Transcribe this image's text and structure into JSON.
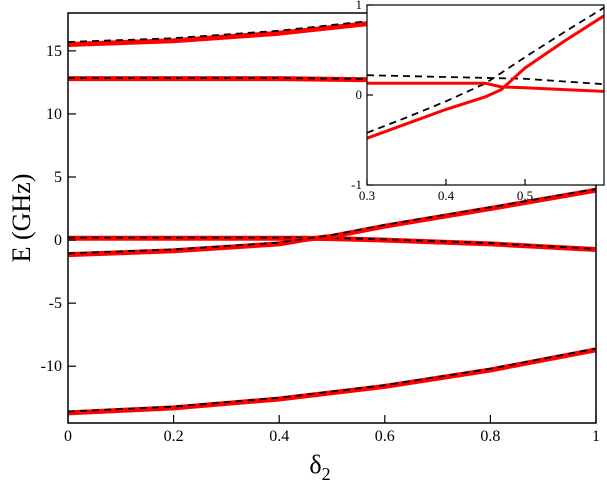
{
  "chart_data": [
    {
      "type": "line",
      "xlabel_main": "δ",
      "xlabel_sub": "2",
      "ylabel": "E (GHz)",
      "xlim": [
        0,
        1
      ],
      "ylim": [
        -14.5,
        18
      ],
      "xticks": [
        0,
        0.2,
        0.4,
        0.6,
        0.8,
        1
      ],
      "xtick_labels": [
        "0",
        "0.2",
        "0.4",
        "0.6",
        "0.8",
        "1"
      ],
      "yticks": [
        -10,
        -5,
        0,
        5,
        10,
        15
      ],
      "ytick_labels": [
        "-10",
        "-5",
        "0",
        "5",
        "10",
        "15"
      ],
      "grid": false,
      "series": [
        {
          "style": "solid",
          "color": "#ff0000",
          "x": [
            0,
            0.2,
            0.4,
            0.6,
            0.7
          ],
          "values": [
            15.5,
            15.8,
            16.4,
            17.3,
            17.9
          ]
        },
        {
          "style": "dashed",
          "color": "#000000",
          "x": [
            0,
            0.2,
            0.4,
            0.6,
            0.7
          ],
          "values": [
            15.7,
            16.0,
            16.6,
            17.5,
            18.0
          ]
        },
        {
          "style": "solid",
          "color": "#ff0000",
          "x": [
            0,
            0.2,
            0.4,
            0.6
          ],
          "values": [
            12.8,
            12.8,
            12.8,
            12.7
          ]
        },
        {
          "style": "dashed",
          "color": "#000000",
          "x": [
            0,
            0.2,
            0.4,
            0.6
          ],
          "values": [
            12.85,
            12.85,
            12.85,
            12.75
          ]
        },
        {
          "style": "solid",
          "color": "#ff0000",
          "x": [
            0,
            0.2,
            0.4,
            0.45,
            0.5,
            0.6,
            0.8,
            1.0
          ],
          "values": [
            0.15,
            0.15,
            0.15,
            0.15,
            0.12,
            0.0,
            -0.3,
            -0.75
          ]
        },
        {
          "style": "dashed",
          "color": "#000000",
          "x": [
            0,
            0.2,
            0.4,
            0.45,
            0.5,
            0.6,
            0.8,
            1.0
          ],
          "values": [
            0.2,
            0.2,
            0.2,
            0.2,
            0.17,
            0.05,
            -0.25,
            -0.7
          ]
        },
        {
          "style": "solid",
          "color": "#ff0000",
          "x": [
            0,
            0.2,
            0.4,
            0.45,
            0.5,
            0.6,
            0.8,
            1.0
          ],
          "values": [
            -1.15,
            -0.85,
            -0.3,
            0.05,
            0.3,
            1.1,
            2.5,
            3.95
          ]
        },
        {
          "style": "dashed",
          "color": "#000000",
          "x": [
            0,
            0.2,
            0.4,
            0.45,
            0.5,
            0.6,
            0.8,
            1.0
          ],
          "values": [
            -1.05,
            -0.75,
            -0.2,
            0.1,
            0.4,
            1.2,
            2.6,
            4.05
          ]
        },
        {
          "style": "solid",
          "color": "#ff0000",
          "x": [
            0,
            0.2,
            0.4,
            0.6,
            0.8,
            1.0
          ],
          "values": [
            -13.7,
            -13.3,
            -12.6,
            -11.6,
            -10.3,
            -8.7
          ]
        },
        {
          "style": "dashed",
          "color": "#000000",
          "x": [
            0,
            0.2,
            0.4,
            0.6,
            0.8,
            1.0
          ],
          "values": [
            -13.6,
            -13.2,
            -12.5,
            -11.5,
            -10.2,
            -8.6
          ]
        }
      ]
    },
    {
      "type": "line",
      "placement": "inset-top-right",
      "xlim": [
        0.3,
        0.6
      ],
      "ylim": [
        -1,
        1
      ],
      "xticks": [
        0.3,
        0.4,
        0.5
      ],
      "xtick_labels": [
        "0.3",
        "0.4",
        "0.5"
      ],
      "yticks": [
        -1,
        0,
        1
      ],
      "ytick_labels": [
        "-1",
        "0",
        "1"
      ],
      "grid": false,
      "series": [
        {
          "style": "dashed",
          "color": "#000000",
          "x": [
            0.3,
            0.35,
            0.4,
            0.45,
            0.5,
            0.55,
            0.6
          ],
          "values": [
            -0.42,
            -0.25,
            -0.07,
            0.13,
            0.42,
            0.7,
            0.97
          ]
        },
        {
          "style": "dashed",
          "color": "#000000",
          "x": [
            0.3,
            0.35,
            0.4,
            0.45,
            0.5,
            0.55,
            0.6
          ],
          "values": [
            0.22,
            0.21,
            0.2,
            0.19,
            0.18,
            0.15,
            0.12
          ]
        },
        {
          "style": "solid",
          "color": "#ff0000",
          "x": [
            0.3,
            0.35,
            0.4,
            0.45,
            0.47,
            0.5,
            0.55,
            0.6
          ],
          "values": [
            -0.48,
            -0.32,
            -0.16,
            -0.02,
            0.06,
            0.3,
            0.6,
            0.88
          ]
        },
        {
          "style": "solid",
          "color": "#ff0000",
          "x": [
            0.3,
            0.35,
            0.4,
            0.45,
            0.47,
            0.5,
            0.55,
            0.6
          ],
          "values": [
            0.13,
            0.13,
            0.13,
            0.13,
            0.09,
            0.08,
            0.06,
            0.04
          ]
        }
      ]
    }
  ]
}
